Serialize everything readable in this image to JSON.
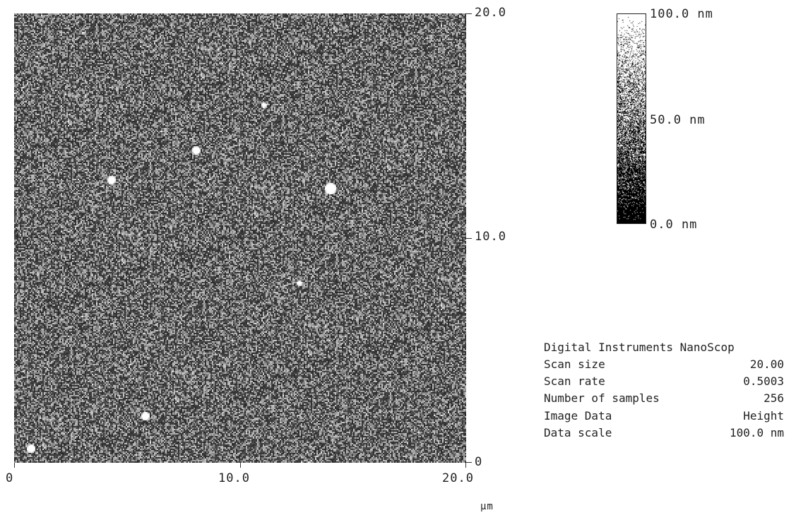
{
  "image": {
    "axes": {
      "x_ticks": [
        "0",
        "10.0",
        "20.0"
      ],
      "y_ticks": [
        "20.0",
        "10.0",
        "0"
      ],
      "unit": "µm"
    }
  },
  "colorbar": {
    "labels": [
      "100.0 nm",
      "50.0 nm",
      "0.0 nm"
    ]
  },
  "info": {
    "header": "Digital Instruments NanoScop",
    "rows": [
      {
        "key": "Scan size",
        "value": "20.00"
      },
      {
        "key": "Scan rate",
        "value": "0.5003"
      },
      {
        "key": "Number of samples",
        "value": "256"
      },
      {
        "key": "Image Data",
        "value": "Height"
      },
      {
        "key": "Data scale",
        "value": "100.0 nm"
      }
    ]
  }
}
